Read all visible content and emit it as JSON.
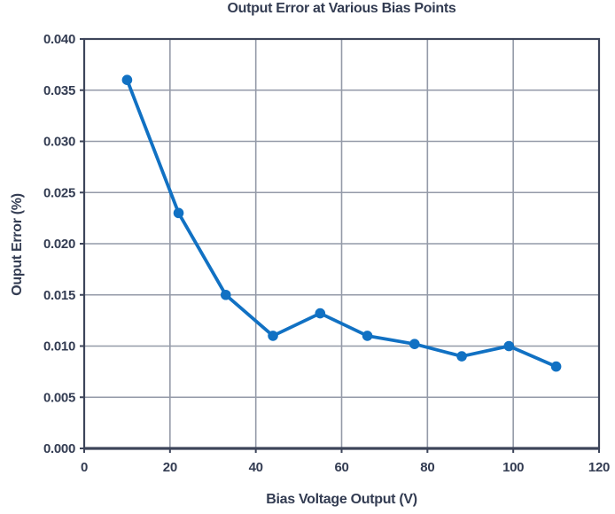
{
  "chart_data": {
    "type": "line",
    "title": "Output Error at Various Bias Points",
    "xlabel": "Bias Voltage Output (V)",
    "ylabel": "Ouput Error (%)",
    "x": [
      10,
      22,
      33,
      44,
      55,
      66,
      77,
      88,
      99,
      110
    ],
    "y": [
      0.036,
      0.023,
      0.015,
      0.011,
      0.0132,
      0.011,
      0.0102,
      0.009,
      0.01,
      0.008
    ],
    "xlim": [
      0,
      120
    ],
    "ylim": [
      0.0,
      0.04
    ],
    "xticks": {
      "values": [
        0,
        20,
        40,
        60,
        80,
        100,
        120
      ],
      "labels": [
        "0",
        "20",
        "40",
        "60",
        "80",
        "100",
        "120"
      ]
    },
    "yticks": {
      "values": [
        0.0,
        0.005,
        0.01,
        0.015,
        0.02,
        0.025,
        0.03,
        0.035,
        0.04
      ],
      "labels": [
        "0.000",
        "0.005",
        "0.010",
        "0.015",
        "0.020",
        "0.025",
        "0.030",
        "0.035",
        "0.040"
      ]
    },
    "grid": true,
    "legend": null,
    "marker": "circle",
    "colors": {
      "line": "#1171c3",
      "marker": "#1171c3",
      "grid": "#949aa8",
      "axis": "#3d455a",
      "text": "#333c52",
      "background": "#ffffff"
    }
  }
}
